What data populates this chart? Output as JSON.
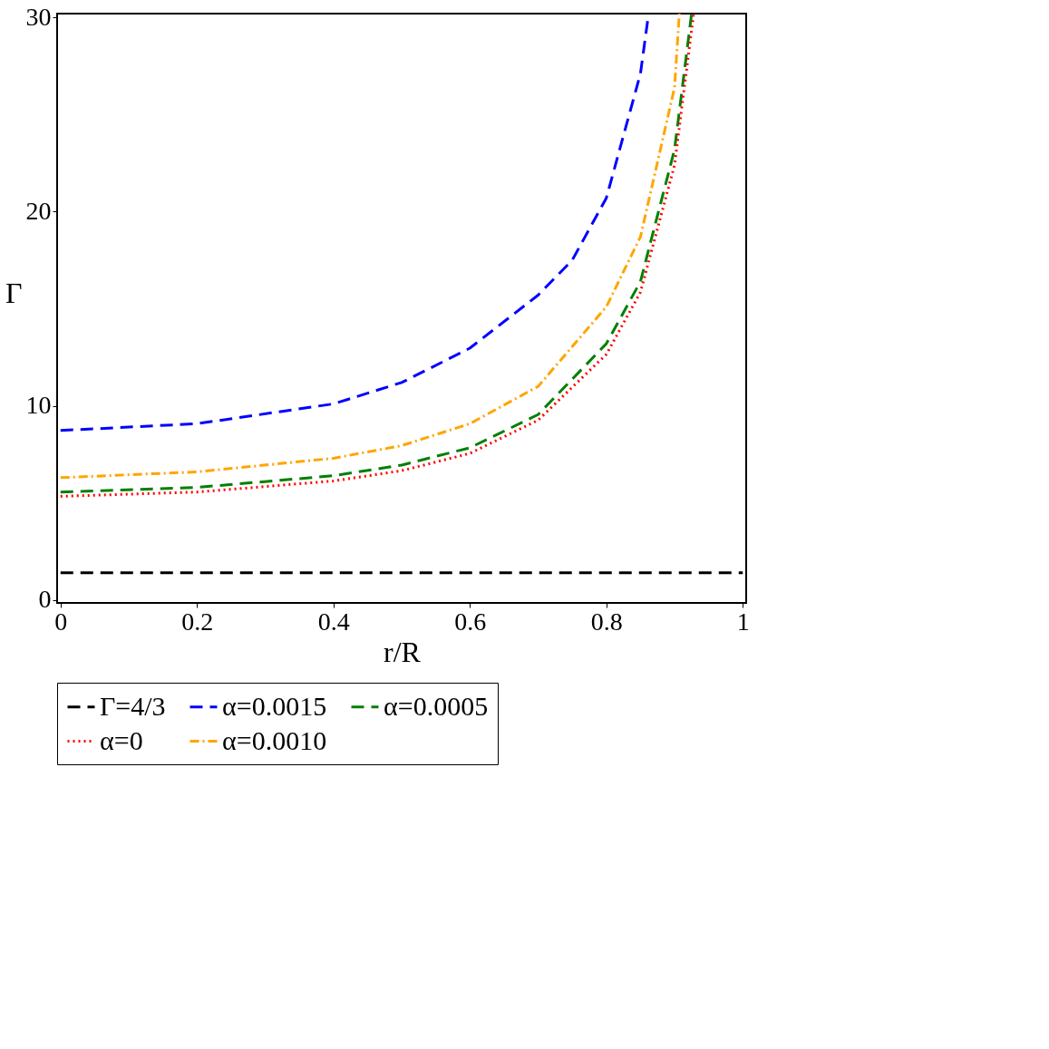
{
  "chart_data": {
    "type": "line",
    "xlabel": "r/R",
    "ylabel": "Γ",
    "xlim": [
      -0.005,
      1.005
    ],
    "ylim": [
      -0.15,
      30.2
    ],
    "xticks": [
      0,
      0.2,
      0.4,
      0.6,
      0.8,
      1
    ],
    "yticks": [
      0,
      10,
      20,
      30
    ],
    "grid": false,
    "legend": "bottom",
    "marker": "none",
    "series": [
      {
        "name": "Γ=4/3",
        "color": "#000000",
        "line_style": "dashed",
        "x": [
          0,
          1
        ],
        "values": [
          1.4,
          1.4
        ]
      },
      {
        "name": "α=0.0015",
        "color": "#0000ff",
        "line_style": "dashed",
        "x": [
          0,
          0.2,
          0.4,
          0.5,
          0.6,
          0.7,
          0.75,
          0.8,
          0.85,
          0.862
        ],
        "values": [
          8.73,
          9.08,
          10.1,
          11.2,
          12.97,
          15.7,
          17.5,
          20.7,
          27.1,
          30.2
        ]
      },
      {
        "name": "α=0.0005",
        "color": "#008000",
        "line_style": "dashed",
        "x": [
          0,
          0.2,
          0.4,
          0.5,
          0.6,
          0.7,
          0.8,
          0.85,
          0.9,
          0.925
        ],
        "values": [
          5.56,
          5.8,
          6.4,
          6.95,
          7.84,
          9.55,
          13.2,
          16.4,
          23.2,
          30.2
        ]
      },
      {
        "name": "α=0",
        "color": "#ff0000",
        "line_style": "dotted",
        "x": [
          0,
          0.2,
          0.4,
          0.5,
          0.6,
          0.7,
          0.8,
          0.85,
          0.9,
          0.928
        ],
        "values": [
          5.34,
          5.56,
          6.13,
          6.66,
          7.55,
          9.26,
          12.65,
          15.85,
          22.4,
          30.2
        ]
      },
      {
        "name": "α=0.0010",
        "color": "#ffa500",
        "line_style": "dashdot",
        "x": [
          0,
          0.2,
          0.4,
          0.5,
          0.6,
          0.7,
          0.8,
          0.85,
          0.9,
          0.907
        ],
        "values": [
          6.3,
          6.6,
          7.3,
          7.95,
          9.08,
          11.0,
          15.1,
          18.7,
          26.4,
          30.2
        ]
      }
    ]
  }
}
